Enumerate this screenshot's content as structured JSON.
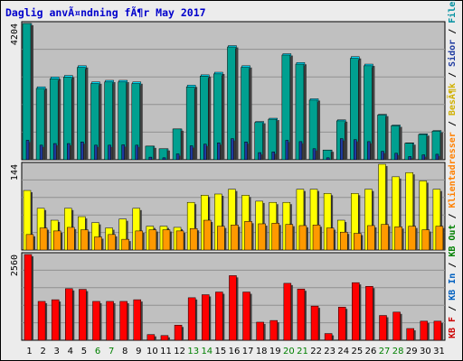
{
  "chart_data": {
    "type": "bar",
    "title": "Daglig anvÃ¤ndning fÃ¶r May 2017",
    "categories": [
      "1",
      "2",
      "3",
      "4",
      "5",
      "6",
      "7",
      "8",
      "9",
      "10",
      "11",
      "12",
      "13",
      "14",
      "15",
      "16",
      "17",
      "18",
      "19",
      "20",
      "21",
      "22",
      "23",
      "24",
      "25",
      "26",
      "27",
      "28",
      "29",
      "30",
      "31"
    ],
    "weekend_days": [
      "6",
      "7",
      "13",
      "14",
      "20",
      "21",
      "27",
      "28"
    ],
    "panels": [
      {
        "id": "traffic",
        "ymax_label": "4204",
        "ylim": [
          0,
          4204
        ],
        "series": [
          {
            "name": "TrÃ¤ffar",
            "color": "#00e0ff",
            "values": [
              4204,
              2250,
              2550,
              2600,
              2900,
              2400,
              2450,
              2450,
              2400,
              420,
              340,
              950,
              2300,
              2620,
              2700,
              3520,
              2900,
              1180,
              1280,
              3270,
              3000,
              1880,
              300,
              1230,
              3180,
              2950,
              1400,
              1070,
              520,
              800,
              900
            ]
          },
          {
            "name": "Filer",
            "color": "#00a090",
            "values": [
              4204,
              2200,
              2500,
              2550,
              2850,
              2350,
              2400,
              2400,
              2350,
              420,
              340,
              950,
              2250,
              2580,
              2650,
              3480,
              2850,
              1150,
              1250,
              3230,
              2950,
              1840,
              300,
              1200,
              3130,
              2900,
              1380,
              1050,
              510,
              780,
              880
            ]
          },
          {
            "name": "Sidor",
            "color": "#1e3aa0",
            "values": [
              600,
              450,
              500,
              500,
              550,
              450,
              450,
              460,
              450,
              80,
              60,
              180,
              430,
              480,
              520,
              650,
              550,
              220,
              240,
              600,
              560,
              340,
              60,
              650,
              620,
              560,
              260,
              200,
              100,
              150,
              170
            ]
          }
        ]
      },
      {
        "id": "visits",
        "ymax_label": "144",
        "ylim": [
          0,
          144
        ],
        "series": [
          {
            "name": "BesÃ¶k",
            "color": "#ffff00",
            "values": [
              100,
              70,
              50,
              70,
              56,
              46,
              37,
              52,
              70,
              40,
              40,
              38,
              80,
              92,
              94,
              102,
              92,
              82,
              80,
              80,
              102,
              102,
              95,
              50,
              95,
              102,
              144,
              123,
              130,
              116,
              102
            ]
          },
          {
            "name": "Klientadresser",
            "color": "#ff9900",
            "values": [
              26,
              37,
              32,
              38,
              34,
              22,
              26,
              18,
              32,
              34,
              34,
              32,
              36,
              50,
              40,
              42,
              48,
              44,
              45,
              43,
              41,
              42,
              37,
              30,
              28,
              41,
              43,
              39,
              40,
              34,
              40
            ]
          }
        ]
      },
      {
        "id": "kbytes",
        "ymax_label": "2560",
        "ylim": [
          0,
          2560
        ],
        "series": [
          {
            "name": "KB F",
            "color": "#ff0000",
            "values": [
              2560,
              1160,
              1210,
              1540,
              1520,
              1160,
              1160,
              1160,
              1210,
              170,
              140,
              450,
              1270,
              1360,
              1440,
              1930,
              1440,
              540,
              590,
              1700,
              1530,
              1020,
              200,
              990,
              1720,
              1610,
              740,
              840,
              350,
              570,
              570
            ]
          }
        ]
      }
    ]
  },
  "legend": {
    "prefix": "KB F / KB In / KB Out / Klientadresser / BesÃ¶k / Sidor / Filer / TrÃ¤ffar",
    "items": [
      {
        "text": "KB F",
        "color": "#cc0000"
      },
      {
        "text": " / ",
        "color": "#000000"
      },
      {
        "text": "KB In",
        "color": "#0060c0"
      },
      {
        "text": " / ",
        "color": "#000000"
      },
      {
        "text": "KB Out",
        "color": "#008000"
      },
      {
        "text": " / ",
        "color": "#000000"
      },
      {
        "text": "Klientadresser",
        "color": "#ff8000"
      },
      {
        "text": " / ",
        "color": "#000000"
      },
      {
        "text": "BesÃ¶k",
        "color": "#d0b000"
      },
      {
        "text": " / ",
        "color": "#000000"
      },
      {
        "text": "Sidor",
        "color": "#1e3aa0"
      },
      {
        "text": " / ",
        "color": "#000000"
      },
      {
        "text": "Filer",
        "color": "#0090a0"
      },
      {
        "text": " / ",
        "color": "#000000"
      },
      {
        "text": "TrÃ¤ffar",
        "color": "#009090"
      }
    ]
  },
  "colors": {
    "background": "#ececec",
    "plot_background": "#c0c0c0",
    "title": "#0000cc",
    "weekday_label": "#000000",
    "weekend_label": "#008000",
    "gridline": "#909090"
  }
}
